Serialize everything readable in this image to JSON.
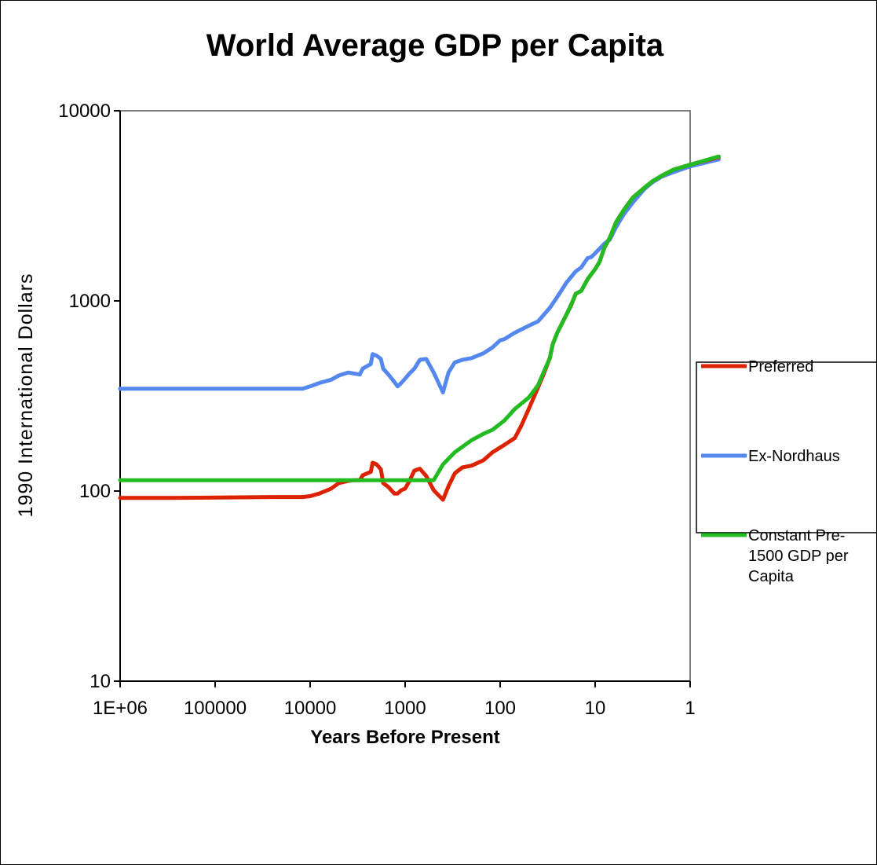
{
  "chart_data": {
    "type": "line",
    "title": "World Average GDP per Capita",
    "xlabel": "Years Before Present",
    "ylabel": "1990 International Dollars",
    "x_scale": "log",
    "y_scale": "log",
    "x_reversed": true,
    "xlim": [
      1000000,
      1
    ],
    "ylim": [
      10,
      10000
    ],
    "x_ticks": [
      1000000,
      100000,
      10000,
      1000,
      100,
      10,
      1
    ],
    "x_tick_labels": [
      "1E+06",
      "100000",
      "10000",
      "1000",
      "100",
      "10",
      "1"
    ],
    "y_ticks": [
      10,
      100,
      1000,
      10000
    ],
    "y_tick_labels": [
      "10",
      "100",
      "1000",
      "10000"
    ],
    "grid": false,
    "legend_position": "right",
    "series": [
      {
        "name": "Preferred",
        "color": "#dd2200",
        "points": [
          [
            1000000,
            92
          ],
          [
            300000,
            92
          ],
          [
            25000,
            93
          ],
          [
            12000,
            93
          ],
          [
            10000,
            94
          ],
          [
            8000,
            97
          ],
          [
            6000,
            103
          ],
          [
            5000,
            110
          ],
          [
            4000,
            113
          ],
          [
            3500,
            114
          ],
          [
            3000,
            114
          ],
          [
            2800,
            121
          ],
          [
            2500,
            124
          ],
          [
            2300,
            126
          ],
          [
            2200,
            141
          ],
          [
            2000,
            138
          ],
          [
            1800,
            130
          ],
          [
            1700,
            110
          ],
          [
            1500,
            105
          ],
          [
            1300,
            97
          ],
          [
            1200,
            97
          ],
          [
            1100,
            101
          ],
          [
            1000,
            103
          ],
          [
            900,
            113
          ],
          [
            800,
            128
          ],
          [
            700,
            131
          ],
          [
            600,
            120
          ],
          [
            500,
            101
          ],
          [
            400,
            90
          ],
          [
            350,
            106
          ],
          [
            300,
            124
          ],
          [
            250,
            133
          ],
          [
            200,
            136
          ],
          [
            150,
            145
          ],
          [
            120,
            160
          ],
          [
            90,
            175
          ],
          [
            70,
            190
          ],
          [
            60,
            220
          ],
          [
            50,
            270
          ],
          [
            40,
            350
          ],
          [
            35,
            410
          ],
          [
            30,
            500
          ],
          [
            28,
            590
          ],
          [
            25,
            680
          ],
          [
            20,
            850
          ],
          [
            18,
            940
          ],
          [
            16,
            1090
          ],
          [
            14,
            1130
          ],
          [
            12,
            1300
          ],
          [
            10,
            1470
          ],
          [
            9,
            1600
          ],
          [
            8,
            1900
          ],
          [
            7,
            2150
          ],
          [
            6,
            2600
          ],
          [
            5,
            3000
          ],
          [
            4,
            3500
          ],
          [
            3,
            3950
          ],
          [
            2.5,
            4250
          ],
          [
            2,
            4550
          ],
          [
            1.5,
            4900
          ],
          [
            1,
            5200
          ],
          [
            0.5,
            5700
          ]
        ]
      },
      {
        "name": "Ex-Nordhaus",
        "color": "#5588ee",
        "points": [
          [
            1000000,
            345
          ],
          [
            12000,
            345
          ],
          [
            10000,
            355
          ],
          [
            8000,
            370
          ],
          [
            6000,
            385
          ],
          [
            5000,
            405
          ],
          [
            4000,
            420
          ],
          [
            3000,
            410
          ],
          [
            2800,
            440
          ],
          [
            2500,
            455
          ],
          [
            2300,
            465
          ],
          [
            2200,
            525
          ],
          [
            2000,
            515
          ],
          [
            1800,
            495
          ],
          [
            1700,
            440
          ],
          [
            1500,
            410
          ],
          [
            1300,
            375
          ],
          [
            1200,
            355
          ],
          [
            1100,
            370
          ],
          [
            1000,
            390
          ],
          [
            900,
            415
          ],
          [
            800,
            440
          ],
          [
            700,
            490
          ],
          [
            600,
            495
          ],
          [
            500,
            420
          ],
          [
            400,
            330
          ],
          [
            350,
            420
          ],
          [
            300,
            475
          ],
          [
            250,
            490
          ],
          [
            200,
            500
          ],
          [
            150,
            530
          ],
          [
            120,
            570
          ],
          [
            100,
            620
          ],
          [
            90,
            630
          ],
          [
            70,
            680
          ],
          [
            50,
            740
          ],
          [
            40,
            780
          ],
          [
            30,
            920
          ],
          [
            25,
            1050
          ],
          [
            20,
            1250
          ],
          [
            16,
            1430
          ],
          [
            14,
            1500
          ],
          [
            12,
            1680
          ],
          [
            11,
            1700
          ],
          [
            10,
            1780
          ],
          [
            9,
            1880
          ],
          [
            8,
            2000
          ],
          [
            7,
            2100
          ],
          [
            6,
            2450
          ],
          [
            5,
            2850
          ],
          [
            4,
            3300
          ],
          [
            3,
            3900
          ],
          [
            2.5,
            4200
          ],
          [
            2,
            4500
          ],
          [
            1.5,
            4750
          ],
          [
            1,
            5100
          ],
          [
            0.5,
            5550
          ]
        ]
      },
      {
        "name": "Constant Pre-1500 GDP per Capita",
        "color": "#22bb22",
        "points": [
          [
            1000000,
            114
          ],
          [
            500,
            114
          ],
          [
            400,
            138
          ],
          [
            300,
            160
          ],
          [
            200,
            185
          ],
          [
            150,
            200
          ],
          [
            120,
            210
          ],
          [
            90,
            235
          ],
          [
            70,
            270
          ],
          [
            50,
            310
          ],
          [
            40,
            360
          ],
          [
            35,
            420
          ],
          [
            30,
            500
          ],
          [
            28,
            590
          ],
          [
            25,
            680
          ],
          [
            20,
            850
          ],
          [
            18,
            950
          ],
          [
            16,
            1090
          ],
          [
            14,
            1130
          ],
          [
            12,
            1300
          ],
          [
            10,
            1470
          ],
          [
            9,
            1600
          ],
          [
            8,
            1900
          ],
          [
            7,
            2150
          ],
          [
            6,
            2600
          ],
          [
            5,
            3000
          ],
          [
            4,
            3500
          ],
          [
            3,
            3950
          ],
          [
            2.5,
            4250
          ],
          [
            2,
            4550
          ],
          [
            1.5,
            4900
          ],
          [
            1,
            5200
          ],
          [
            0.5,
            5750
          ]
        ]
      }
    ],
    "legend": [
      {
        "lines": [
          "Preferred"
        ]
      },
      {
        "lines": [
          "Ex-Nordhaus"
        ]
      },
      {
        "lines": [
          "Constant Pre-",
          "1500 GDP per",
          "Capita"
        ]
      }
    ]
  }
}
